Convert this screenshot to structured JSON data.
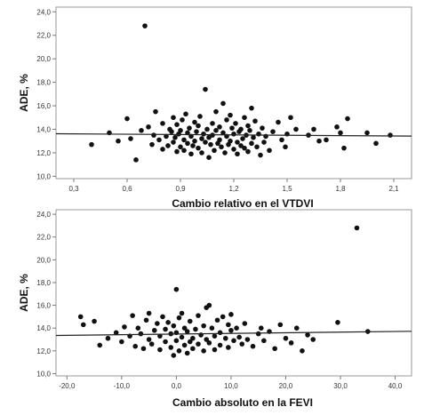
{
  "chart_data": [
    {
      "type": "scatter",
      "xlabel": "Cambio relativo en el VTDVI",
      "ylabel": "ADE, %",
      "xticks": [
        "0,3",
        "0,6",
        "0,9",
        "1,2",
        "1,5",
        "1,8",
        "2,1"
      ],
      "yticks": [
        "10,0",
        "12,0",
        "14,0",
        "16,0",
        "18,0",
        "20,0",
        "22,0",
        "24,0"
      ],
      "xlim": [
        0.2,
        2.2
      ],
      "ylim": [
        9.8,
        24.4
      ],
      "grid": false,
      "fit_line": {
        "x": [
          0.2,
          2.2
        ],
        "y": [
          13.62,
          13.42
        ]
      },
      "points": [
        [
          0.4,
          12.7
        ],
        [
          0.5,
          13.7
        ],
        [
          0.55,
          13.0
        ],
        [
          0.6,
          14.9
        ],
        [
          0.62,
          13.2
        ],
        [
          0.65,
          11.4
        ],
        [
          0.68,
          13.9
        ],
        [
          0.7,
          22.8
        ],
        [
          0.72,
          14.2
        ],
        [
          0.74,
          12.7
        ],
        [
          0.75,
          13.5
        ],
        [
          0.76,
          15.5
        ],
        [
          0.78,
          13.1
        ],
        [
          0.8,
          12.3
        ],
        [
          0.8,
          14.5
        ],
        [
          0.82,
          13.4
        ],
        [
          0.83,
          12.6
        ],
        [
          0.84,
          14.0
        ],
        [
          0.85,
          13.8
        ],
        [
          0.86,
          12.9
        ],
        [
          0.86,
          15.0
        ],
        [
          0.87,
          13.3
        ],
        [
          0.88,
          12.1
        ],
        [
          0.88,
          14.4
        ],
        [
          0.89,
          13.6
        ],
        [
          0.9,
          12.5
        ],
        [
          0.9,
          13.9
        ],
        [
          0.91,
          14.8
        ],
        [
          0.92,
          13.1
        ],
        [
          0.92,
          12.2
        ],
        [
          0.93,
          15.3
        ],
        [
          0.94,
          13.7
        ],
        [
          0.94,
          12.8
        ],
        [
          0.95,
          14.1
        ],
        [
          0.96,
          13.4
        ],
        [
          0.96,
          11.9
        ],
        [
          0.97,
          12.6
        ],
        [
          0.98,
          14.6
        ],
        [
          0.98,
          13.0
        ],
        [
          0.99,
          13.8
        ],
        [
          1.0,
          12.4
        ],
        [
          1.0,
          14.3
        ],
        [
          1.01,
          15.1
        ],
        [
          1.02,
          13.2
        ],
        [
          1.02,
          12.0
        ],
        [
          1.03,
          13.6
        ],
        [
          1.04,
          12.9
        ],
        [
          1.04,
          17.4
        ],
        [
          1.05,
          14.0
        ],
        [
          1.06,
          13.3
        ],
        [
          1.06,
          11.6
        ],
        [
          1.07,
          12.7
        ],
        [
          1.08,
          14.5
        ],
        [
          1.08,
          13.5
        ],
        [
          1.09,
          12.2
        ],
        [
          1.1,
          13.9
        ],
        [
          1.1,
          15.5
        ],
        [
          1.11,
          12.8
        ],
        [
          1.12,
          13.1
        ],
        [
          1.12,
          14.2
        ],
        [
          1.13,
          12.5
        ],
        [
          1.14,
          13.7
        ],
        [
          1.14,
          16.2
        ],
        [
          1.15,
          12.0
        ],
        [
          1.16,
          13.4
        ],
        [
          1.16,
          14.8
        ],
        [
          1.17,
          12.7
        ],
        [
          1.18,
          13.0
        ],
        [
          1.18,
          15.2
        ],
        [
          1.19,
          14.1
        ],
        [
          1.2,
          12.3
        ],
        [
          1.2,
          13.6
        ],
        [
          1.21,
          14.5
        ],
        [
          1.22,
          12.9
        ],
        [
          1.22,
          11.9
        ],
        [
          1.23,
          13.8
        ],
        [
          1.24,
          12.6
        ],
        [
          1.24,
          14.0
        ],
        [
          1.25,
          13.2
        ],
        [
          1.26,
          15.0
        ],
        [
          1.26,
          12.4
        ],
        [
          1.27,
          13.5
        ],
        [
          1.28,
          14.3
        ],
        [
          1.28,
          12.1
        ],
        [
          1.29,
          13.9
        ],
        [
          1.3,
          15.8
        ],
        [
          1.3,
          12.8
        ],
        [
          1.31,
          13.3
        ],
        [
          1.32,
          14.7
        ],
        [
          1.33,
          12.5
        ],
        [
          1.34,
          13.6
        ],
        [
          1.35,
          11.8
        ],
        [
          1.36,
          14.1
        ],
        [
          1.37,
          12.9
        ],
        [
          1.38,
          13.4
        ],
        [
          1.4,
          12.2
        ],
        [
          1.42,
          13.8
        ],
        [
          1.45,
          14.6
        ],
        [
          1.47,
          13.1
        ],
        [
          1.49,
          12.5
        ],
        [
          1.5,
          13.6
        ],
        [
          1.52,
          15.0
        ],
        [
          1.55,
          14.0
        ],
        [
          1.62,
          13.5
        ],
        [
          1.65,
          14.0
        ],
        [
          1.68,
          13.0
        ],
        [
          1.72,
          13.1
        ],
        [
          1.78,
          14.2
        ],
        [
          1.8,
          13.7
        ],
        [
          1.82,
          12.4
        ],
        [
          1.84,
          14.9
        ],
        [
          1.95,
          13.7
        ],
        [
          2.0,
          12.8
        ],
        [
          2.08,
          13.5
        ]
      ]
    },
    {
      "type": "scatter",
      "xlabel": "Cambio absoluto en la FEVI",
      "ylabel": "ADE, %",
      "xticks": [
        "-20,0",
        "-10,0",
        "0,0",
        "10,0",
        "20,0",
        "30,0",
        "40,0"
      ],
      "yticks": [
        "10,0",
        "12,0",
        "14,0",
        "16,0",
        "18,0",
        "20,0",
        "22,0",
        "24,0"
      ],
      "xlim": [
        -22,
        43
      ],
      "ylim": [
        9.8,
        24.4
      ],
      "grid": false,
      "fit_line": {
        "x": [
          -22,
          43
        ],
        "y": [
          13.35,
          13.72
        ]
      },
      "points": [
        [
          -17.5,
          15.0
        ],
        [
          -17.0,
          14.3
        ],
        [
          -15.0,
          14.6
        ],
        [
          -14.0,
          12.5
        ],
        [
          -12.5,
          13.1
        ],
        [
          -11.0,
          13.6
        ],
        [
          -10.0,
          12.8
        ],
        [
          -9.5,
          14.1
        ],
        [
          -8.5,
          13.3
        ],
        [
          -8.0,
          15.1
        ],
        [
          -7.5,
          12.4
        ],
        [
          -7.0,
          14.0
        ],
        [
          -6.5,
          13.5
        ],
        [
          -6.0,
          12.2
        ],
        [
          -5.5,
          14.7
        ],
        [
          -5.0,
          13.0
        ],
        [
          -5.0,
          15.3
        ],
        [
          -4.5,
          12.6
        ],
        [
          -4.0,
          13.8
        ],
        [
          -3.5,
          14.4
        ],
        [
          -3.0,
          12.1
        ],
        [
          -3.0,
          13.3
        ],
        [
          -2.5,
          15.0
        ],
        [
          -2.0,
          12.8
        ],
        [
          -2.0,
          13.9
        ],
        [
          -1.5,
          14.5
        ],
        [
          -1.0,
          12.3
        ],
        [
          -1.0,
          13.5
        ],
        [
          -0.5,
          11.6
        ],
        [
          -0.5,
          14.2
        ],
        [
          0.0,
          12.9
        ],
        [
          0.0,
          13.6
        ],
        [
          0.0,
          17.4
        ],
        [
          0.5,
          12.0
        ],
        [
          0.5,
          14.9
        ],
        [
          1.0,
          13.2
        ],
        [
          1.0,
          15.3
        ],
        [
          1.5,
          12.5
        ],
        [
          1.5,
          14.0
        ],
        [
          2.0,
          13.7
        ],
        [
          2.0,
          11.8
        ],
        [
          2.5,
          12.8
        ],
        [
          2.5,
          14.6
        ],
        [
          3.0,
          13.1
        ],
        [
          3.0,
          12.2
        ],
        [
          3.5,
          13.9
        ],
        [
          4.0,
          12.6
        ],
        [
          4.0,
          15.1
        ],
        [
          4.5,
          13.4
        ],
        [
          5.0,
          14.2
        ],
        [
          5.0,
          12.0
        ],
        [
          5.5,
          15.8
        ],
        [
          5.5,
          13.0
        ],
        [
          6.0,
          16.0
        ],
        [
          6.0,
          12.7
        ],
        [
          6.5,
          14.0
        ],
        [
          7.0,
          13.3
        ],
        [
          7.0,
          12.1
        ],
        [
          7.5,
          14.7
        ],
        [
          8.0,
          13.6
        ],
        [
          8.0,
          12.5
        ],
        [
          8.5,
          15.0
        ],
        [
          9.0,
          13.1
        ],
        [
          9.5,
          14.3
        ],
        [
          9.5,
          12.3
        ],
        [
          10.0,
          13.8
        ],
        [
          10.0,
          15.2
        ],
        [
          10.5,
          12.9
        ],
        [
          11.0,
          14.0
        ],
        [
          11.5,
          13.2
        ],
        [
          12.0,
          12.6
        ],
        [
          12.5,
          14.4
        ],
        [
          13.0,
          13.0
        ],
        [
          14.0,
          12.4
        ],
        [
          15.0,
          13.5
        ],
        [
          15.5,
          14.0
        ],
        [
          16.0,
          12.9
        ],
        [
          17.0,
          13.7
        ],
        [
          18.0,
          12.2
        ],
        [
          19.0,
          14.3
        ],
        [
          20.0,
          13.1
        ],
        [
          21.0,
          12.7
        ],
        [
          22.0,
          14.0
        ],
        [
          23.0,
          12.0
        ],
        [
          24.0,
          13.4
        ],
        [
          25.0,
          13.0
        ],
        [
          29.5,
          14.5
        ],
        [
          33.0,
          22.8
        ],
        [
          35.0,
          13.7
        ]
      ]
    }
  ]
}
